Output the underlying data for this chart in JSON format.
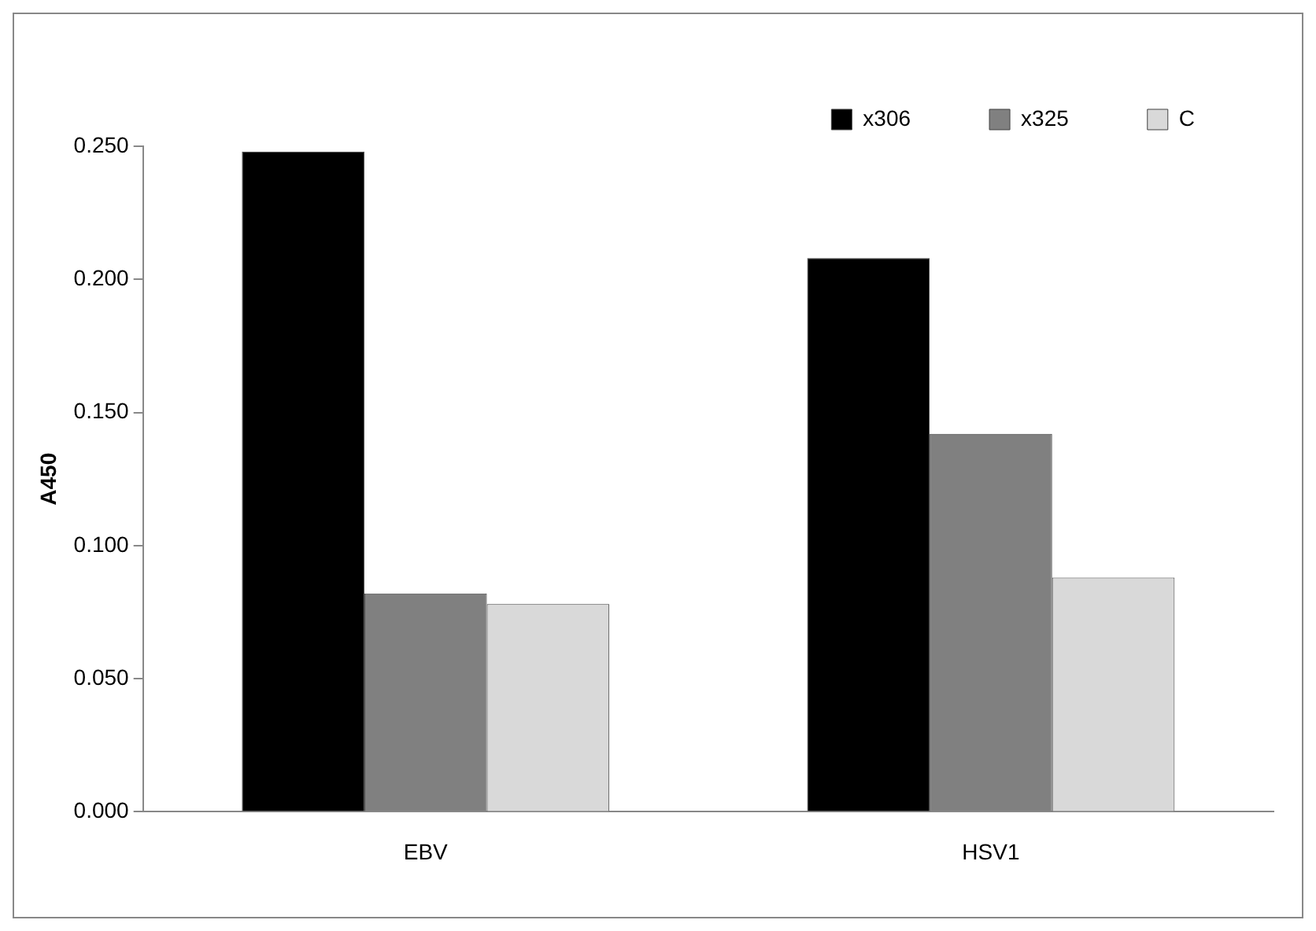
{
  "chart_data": {
    "type": "bar",
    "ylabel": "A450",
    "categories": [
      "EBV",
      "HSV1"
    ],
    "series": [
      {
        "name": "x306",
        "color": "#000000",
        "values": [
          0.248,
          0.208
        ]
      },
      {
        "name": "x325",
        "color": "#808080",
        "values": [
          0.082,
          0.142
        ]
      },
      {
        "name": "C",
        "color": "#d9d9d9",
        "values": [
          0.078,
          0.088
        ]
      }
    ],
    "ylim": [
      0,
      0.25
    ],
    "yticks": [
      {
        "value": 0,
        "label": "0.000"
      },
      {
        "value": 0.05,
        "label": "0.050"
      },
      {
        "value": 0.1,
        "label": "0.100"
      },
      {
        "value": 0.15,
        "label": "0.150"
      },
      {
        "value": 0.2,
        "label": "0.200"
      },
      {
        "value": 0.25,
        "label": "0.250"
      }
    ],
    "grid": false,
    "legend": "top right"
  }
}
